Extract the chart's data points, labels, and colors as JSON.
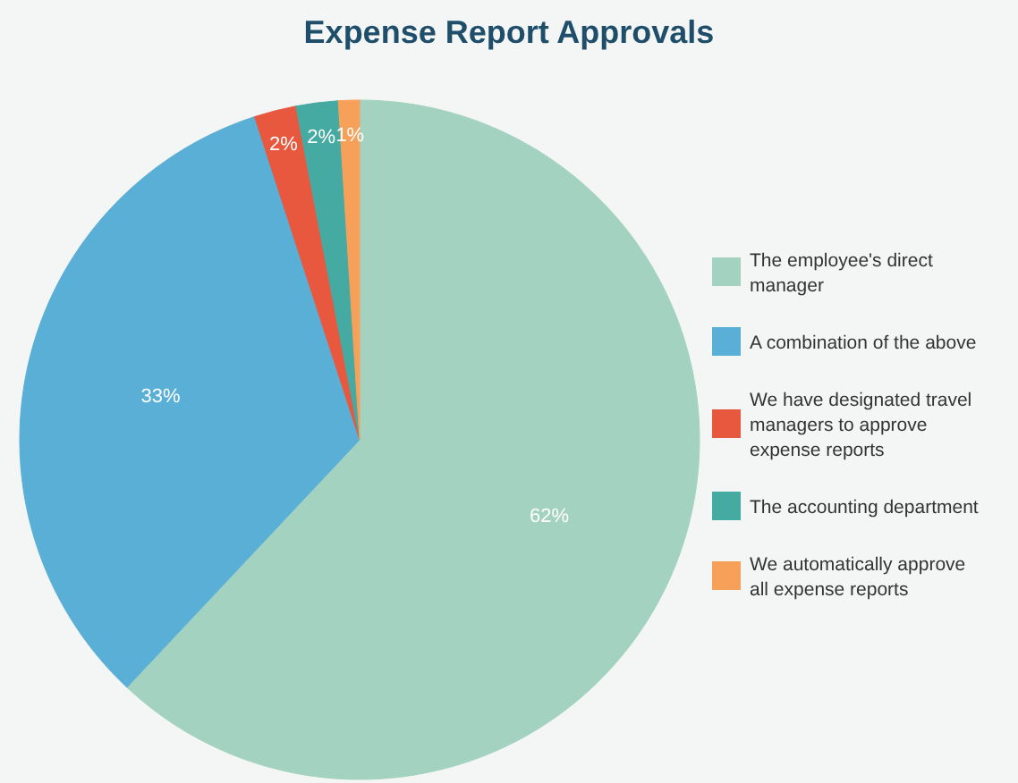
{
  "chart_data": {
    "type": "pie",
    "title": "Expense Report Approvals",
    "categories": [
      "The employee's direct manager",
      "A combination of the above",
      "We have designated travel managers to approve expense reports",
      "The accounting department",
      "We automatically approve all expense reports"
    ],
    "values": [
      62,
      33,
      2,
      2,
      1
    ],
    "colors": [
      "#a3d3c0",
      "#5aafd6",
      "#e8583e",
      "#45aaa2",
      "#f6a05a"
    ],
    "value_labels": [
      "62%",
      "33%",
      "2%",
      "2%",
      "1%"
    ],
    "legend": "right"
  }
}
